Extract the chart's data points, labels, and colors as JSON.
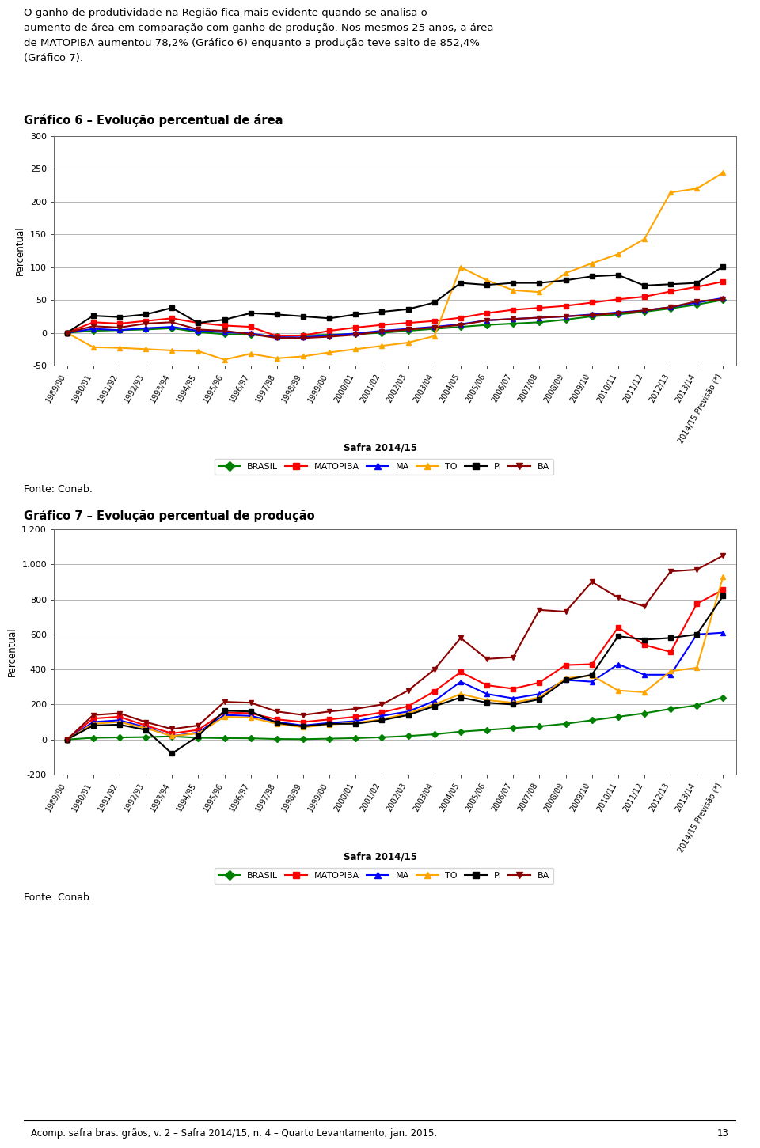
{
  "para1": "O ganho de produtividade na Região fica mais evidente quando se analisa o aumento de área em comparação com ganho de produção. Nos mesmos 25 anos, a área de MATOPIBA aumentou 78,2% (Gráfico 6) enquanto a produção teve salto de 852,4% (Gráfico 7).",
  "grafico6_title": "Gráfico 6 – Evolução percentual de área",
  "grafico7_title": "Gráfico 7 – Evolução percentual de produção",
  "fonte_text": "Fonte: Conab.",
  "safra_label": "Safra 2014/15",
  "footer_text": "Acomp. safra bras. grãos, v. 2 – Safra 2014/15, n. 4 – Quarto Levantamento, jan. 2015.",
  "footer_page": "13",
  "ylabel": "Percentual",
  "xlabels": [
    "1989/90",
    "1990/91",
    "1991/92",
    "1992/93",
    "1993/94",
    "1994/95",
    "1995/96",
    "1996/97",
    "1997/98",
    "1998/99",
    "1999/00",
    "2000/01",
    "2001/02",
    "2002/03",
    "2003/04",
    "2004/05",
    "2005/06",
    "2006/07",
    "2007/08",
    "2008/09",
    "2009/10",
    "2010/11",
    "2011/12",
    "2012/13",
    "2013/14",
    "2014/15 Previsão (*)"
  ],
  "series_colors": {
    "BRASIL": "#008000",
    "MATOPIBA": "#FF0000",
    "MA": "#0000FF",
    "TO": "#FFA500",
    "PI": "#000000",
    "BA": "#8B0000"
  },
  "series_markers": {
    "BRASIL": "D",
    "MATOPIBA": "s",
    "MA": "^",
    "TO": "^",
    "PI": "s",
    "BA": "v"
  },
  "g6_BRASIL": [
    0,
    3,
    4,
    5,
    7,
    1,
    -2,
    -3,
    -5,
    -4,
    -3,
    -2,
    0,
    3,
    6,
    9,
    12,
    14,
    16,
    20,
    25,
    28,
    32,
    37,
    43,
    50
  ],
  "g6_MATOPIBA": [
    0,
    16,
    14,
    18,
    22,
    15,
    11,
    9,
    -5,
    -4,
    3,
    8,
    12,
    15,
    18,
    23,
    30,
    35,
    38,
    41,
    46,
    51,
    55,
    63,
    70,
    78
  ],
  "g6_MA": [
    0,
    6,
    4,
    7,
    9,
    3,
    1,
    -1,
    -7,
    -7,
    -4,
    -1,
    3,
    6,
    9,
    13,
    19,
    21,
    23,
    25,
    28,
    31,
    34,
    39,
    46,
    53
  ],
  "g6_TO": [
    0,
    -22,
    -23,
    -25,
    -27,
    -28,
    -41,
    -32,
    -39,
    -36,
    -30,
    -25,
    -20,
    -15,
    -5,
    100,
    80,
    65,
    62,
    91,
    106,
    120,
    143,
    214,
    220,
    244
  ],
  "g6_PI": [
    0,
    26,
    24,
    28,
    38,
    15,
    20,
    30,
    28,
    25,
    22,
    28,
    32,
    36,
    46,
    76,
    73,
    76,
    76,
    80,
    86,
    88,
    72,
    74,
    76,
    101
  ],
  "g6_BA": [
    0,
    10,
    8,
    14,
    16,
    5,
    3,
    -2,
    -8,
    -8,
    -6,
    -3,
    2,
    5,
    8,
    12,
    19,
    21,
    23,
    25,
    27,
    30,
    34,
    39,
    48,
    51
  ],
  "g7_BRASIL": [
    0,
    10,
    12,
    14,
    18,
    10,
    8,
    7,
    3,
    2,
    5,
    8,
    13,
    20,
    30,
    45,
    55,
    65,
    75,
    90,
    110,
    130,
    150,
    175,
    195,
    240
  ],
  "g7_MATOPIBA": [
    0,
    120,
    130,
    80,
    35,
    55,
    155,
    150,
    115,
    100,
    115,
    130,
    155,
    190,
    275,
    385,
    310,
    290,
    325,
    425,
    430,
    640,
    540,
    500,
    775,
    855
  ],
  "g7_MA": [
    0,
    100,
    110,
    70,
    20,
    40,
    140,
    135,
    100,
    80,
    95,
    105,
    135,
    160,
    220,
    330,
    260,
    235,
    260,
    340,
    330,
    430,
    370,
    370,
    600,
    610
  ],
  "g7_TO": [
    0,
    90,
    100,
    65,
    20,
    35,
    130,
    125,
    90,
    70,
    85,
    95,
    115,
    150,
    200,
    260,
    225,
    210,
    240,
    350,
    365,
    280,
    270,
    390,
    410,
    930
  ],
  "g7_PI": [
    0,
    80,
    85,
    55,
    -80,
    20,
    165,
    160,
    95,
    75,
    90,
    90,
    110,
    140,
    190,
    240,
    210,
    200,
    230,
    340,
    370,
    590,
    570,
    580,
    600,
    820
  ],
  "g7_BA": [
    0,
    140,
    150,
    100,
    60,
    80,
    215,
    210,
    160,
    140,
    160,
    175,
    200,
    280,
    400,
    580,
    460,
    470,
    740,
    730,
    900,
    810,
    760,
    960,
    970,
    1050
  ],
  "g6_ylim": [
    -50,
    300
  ],
  "g6_yticks": [
    -50,
    0,
    50,
    100,
    150,
    200,
    250,
    300
  ],
  "g7_ylim": [
    -200,
    1200
  ],
  "g7_yticks": [
    -200,
    0,
    200,
    400,
    600,
    800,
    1000,
    1200
  ],
  "g7_yticklabels": [
    "-200",
    "0",
    "200",
    "400",
    "600",
    "800",
    "1.000",
    "1.200"
  ],
  "bg_color": "#FFFFFF",
  "grid_color": "#AAAAAA"
}
